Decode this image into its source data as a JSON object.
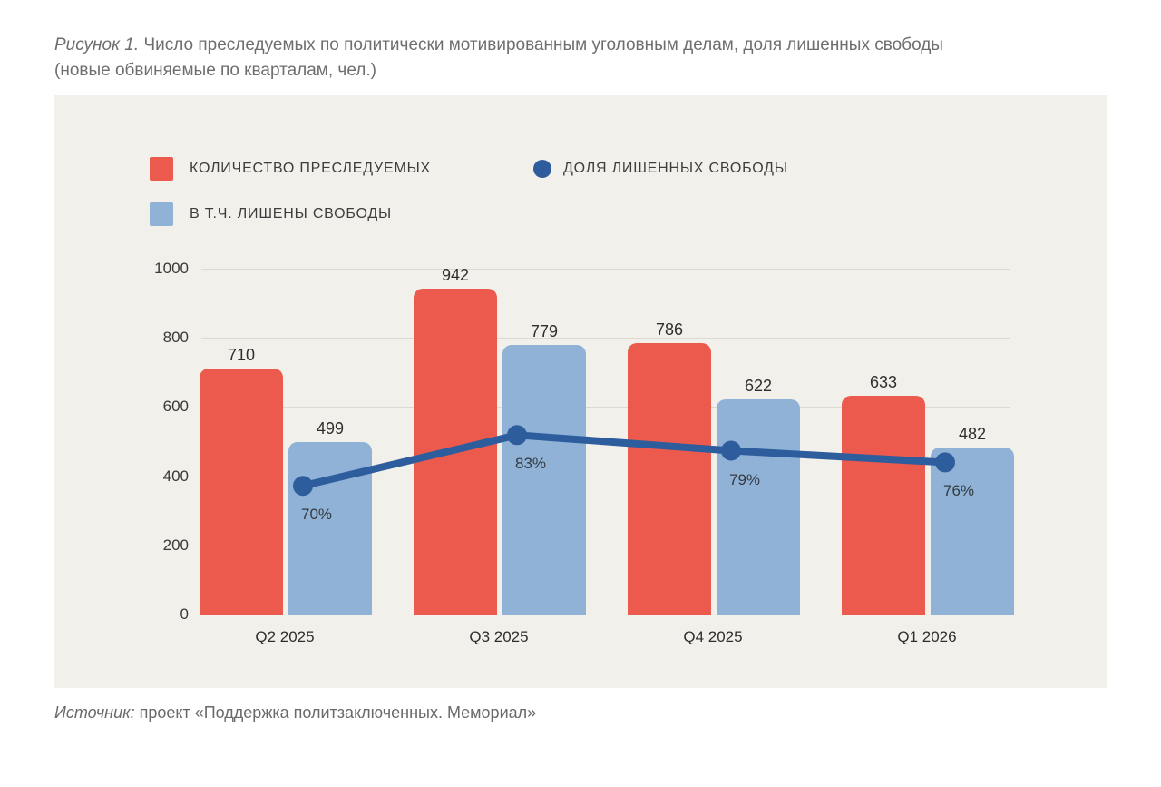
{
  "caption": {
    "prefix": "Рисунок 1.",
    "line1": "Число преследуемых по политически мотивированным уголовным делам, доля лишенных свободы",
    "line2": "(новые обвиняемые по кварталам, чел.)"
  },
  "legend": {
    "prosecuted": {
      "label": "КОЛИЧЕСТВО ПРЕСЛЕДУЕМЫХ",
      "marker": "square",
      "color": "#eb5a4c"
    },
    "share_imprisoned": {
      "label": "ДОЛЯ ЛИШЕННЫХ СВОБОДЫ",
      "marker": "circle",
      "color": "#2e5d9e"
    },
    "imprisoned": {
      "label": "В Т.Ч. ЛИШЕНЫ СВОБОДЫ",
      "marker": "square",
      "color": "#8fb2d6"
    }
  },
  "chart_data": {
    "type": "combo-bar-line",
    "categories": [
      "Q2 2025",
      "Q3 2025",
      "Q4 2025",
      "Q1 2026"
    ],
    "series": [
      {
        "name": "КОЛИЧЕСТВО ПРЕСЛЕДУЕМЫХ",
        "type": "bar",
        "color": "#eb5a4c",
        "values": [
          710,
          942,
          786,
          633
        ]
      },
      {
        "name": "В Т.Ч. ЛИШЕНЫ СВОБОДЫ",
        "type": "bar",
        "color": "#8fb2d6",
        "values": [
          499,
          779,
          622,
          482
        ]
      },
      {
        "name": "ДОЛЯ ЛИШЕННЫХ СВОБОДЫ",
        "type": "line",
        "color": "#2e5d9e",
        "values_percent": [
          70,
          83,
          79,
          76
        ],
        "point_labels": [
          "70%",
          "83%",
          "79%",
          "76%"
        ]
      }
    ],
    "yticks": [
      0,
      200,
      400,
      600,
      800,
      1000
    ],
    "ylim": [
      0,
      1000
    ],
    "grid": true,
    "legend_position": "top-left"
  },
  "source": {
    "prefix": "Источник:",
    "text": "проект «Поддержка политзаключенных. Мемориал»"
  },
  "colors": {
    "page_bg": "#ffffff",
    "card_bg": "#f2f0ea",
    "grid": "#dcd9d1",
    "bar_red": "#eb5a4c",
    "bar_blue": "#8fb2d6",
    "line_blue": "#2e5d9e",
    "caption_text": "#6e6e6e",
    "chart_text": "#2e2e2e"
  }
}
